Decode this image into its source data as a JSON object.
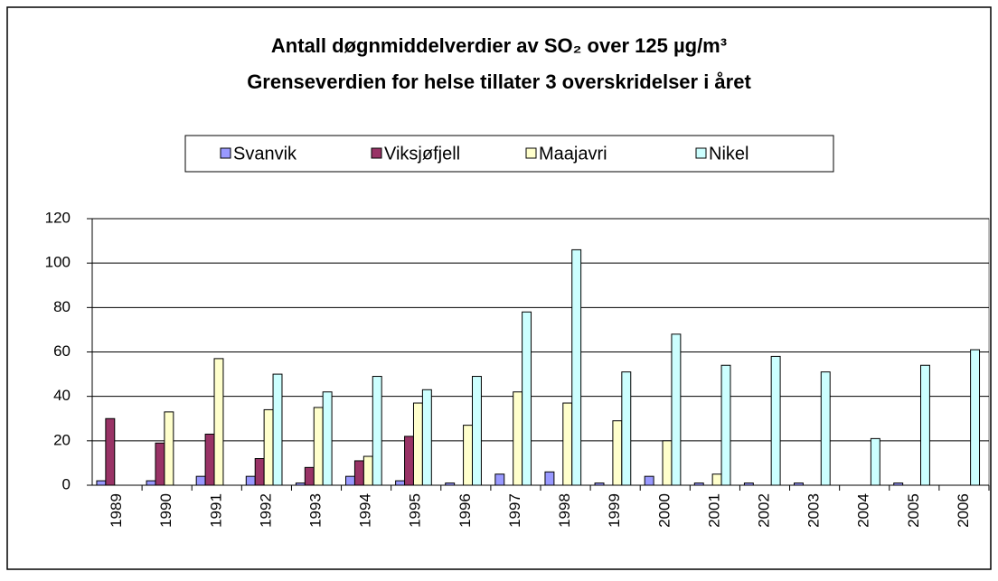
{
  "chart_data": {
    "type": "bar",
    "title": [
      "Antall døgnmiddelverdier av SO₂ over 125 µg/m³",
      "Grenseverdien for helse tillater 3 overskridelser i året"
    ],
    "categories": [
      "1989",
      "1990",
      "1991",
      "1992",
      "1993",
      "1994",
      "1995",
      "1996",
      "1997",
      "1998",
      "1999",
      "2000",
      "2001",
      "2002",
      "2003",
      "2004",
      "2005",
      "2006"
    ],
    "series": [
      {
        "name": "Svanvik",
        "color": "#9999ff",
        "values": [
          2,
          2,
          4,
          4,
          1,
          4,
          2,
          1,
          5,
          6,
          1,
          4,
          1,
          1,
          1,
          null,
          1,
          null
        ]
      },
      {
        "name": "Viksjøfjell",
        "color": "#993366",
        "values": [
          30,
          19,
          23,
          12,
          8,
          11,
          22,
          null,
          null,
          null,
          null,
          null,
          null,
          null,
          null,
          null,
          null,
          null
        ]
      },
      {
        "name": "Maajavri",
        "color": "#ffffcc",
        "values": [
          null,
          33,
          57,
          34,
          35,
          13,
          37,
          27,
          42,
          37,
          29,
          20,
          5,
          null,
          null,
          null,
          null,
          null
        ]
      },
      {
        "name": "Nikel",
        "color": "#ccffff",
        "values": [
          null,
          null,
          null,
          50,
          42,
          49,
          43,
          49,
          78,
          106,
          51,
          68,
          54,
          58,
          51,
          21,
          54,
          61
        ]
      }
    ],
    "ylim": [
      0,
      120
    ],
    "yticks": [
      0,
      20,
      40,
      60,
      80,
      100,
      120
    ],
    "grid": true,
    "legend": "top"
  }
}
